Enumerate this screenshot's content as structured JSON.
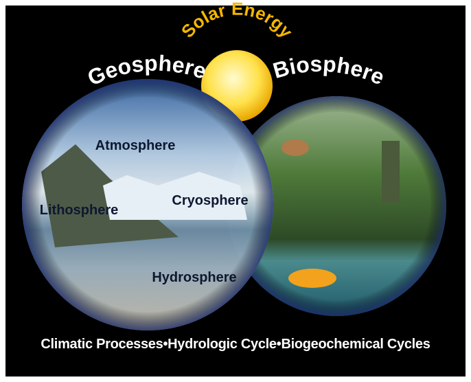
{
  "header": {
    "sun_label": "Solar Energy",
    "left_label": "Geosphere",
    "right_label": "Biosphere"
  },
  "spheres": [
    {
      "label": "Atmosphere"
    },
    {
      "label": "Lithosphere"
    },
    {
      "label": "Cryosphere"
    },
    {
      "label": "Hydrosphere"
    }
  ],
  "footer": {
    "items": [
      "Climatic Processes",
      "Hydrologic Cycle",
      "Biogeochemical Cycles"
    ]
  }
}
